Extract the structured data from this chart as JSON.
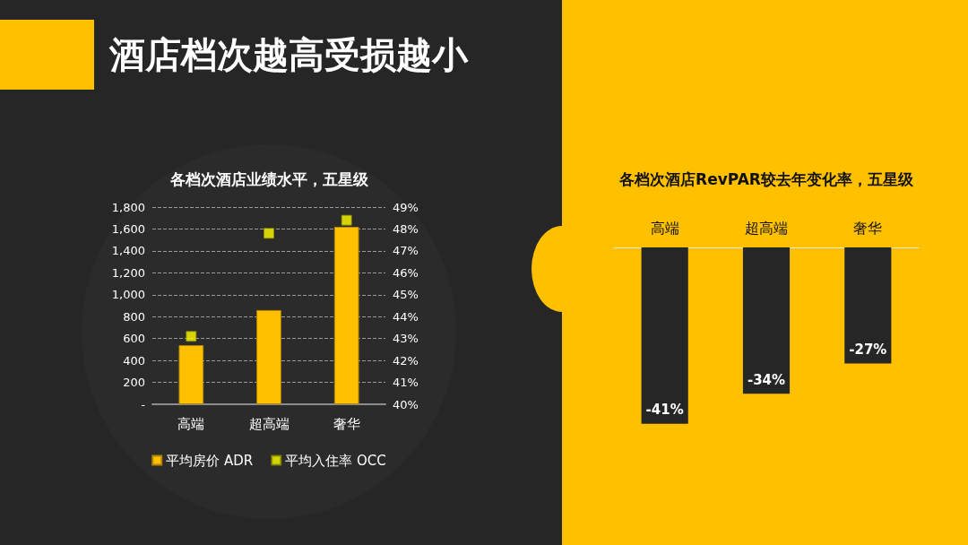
{
  "chart_data": [
    {
      "type": "bar",
      "title": "酒店档次越高受损越小",
      "subtitle": "各档次酒店业绩水平，五星级",
      "categories": [
        "高端",
        "超高端",
        "奢华"
      ],
      "series": [
        {
          "name": "平均房价 ADR",
          "type": "bar",
          "color": "#ffc000",
          "values": [
            540,
            860,
            1620
          ]
        },
        {
          "name": "平均入住率 OCC",
          "type": "scatter",
          "axis": "y2",
          "color": "#ffff00",
          "values": [
            43.1,
            47.8,
            48.4
          ]
        }
      ],
      "ylim": [
        0,
        1800
      ],
      "yticks": [
        {
          "value": 0,
          "label": "-"
        },
        200,
        400,
        600,
        800,
        {
          "value": 1000,
          "label": "1,000"
        },
        {
          "value": 1200,
          "label": "1,200"
        },
        {
          "value": 1400,
          "label": "1,400"
        },
        {
          "value": 1600,
          "label": "1,600"
        },
        {
          "value": 1800,
          "label": "1,800"
        }
      ],
      "y2lim": [
        40,
        49
      ],
      "y2ticks": [
        {
          "value": 40,
          "label": "40%"
        },
        {
          "value": 41,
          "label": "41%"
        },
        {
          "value": 42,
          "label": "42%"
        },
        {
          "value": 43,
          "label": "43%"
        },
        {
          "value": 44,
          "label": "44%"
        },
        {
          "value": 45,
          "label": "45%"
        },
        {
          "value": 46,
          "label": "46%"
        },
        {
          "value": 47,
          "label": "47%"
        },
        {
          "value": 48,
          "label": "48%"
        },
        {
          "value": 49,
          "label": "49%"
        }
      ],
      "grid": "y",
      "legend": "bottom",
      "marker": "square"
    },
    {
      "type": "bar",
      "title": "各档次酒店RevPAR较去年变化率，五星级",
      "categories": [
        "高端",
        "超高端",
        "奢华"
      ],
      "values": [
        -41,
        -34,
        -27
      ],
      "color": "#262626",
      "value_labels": [
        "-41%",
        "-34%",
        "-27%"
      ]
    }
  ]
}
